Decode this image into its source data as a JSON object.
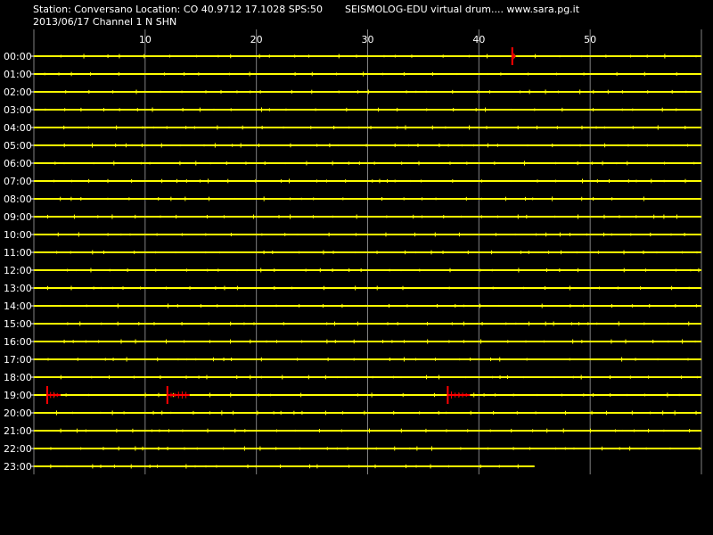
{
  "header": {
    "station_line": "Station: Conversano Location: CO 40.9712 17.1028 SPS:50",
    "brand": "SEISMOLOG-EDU virtual drum.... www.sara.pg.it",
    "date_line": "2013/06/17  Channel 1 N SHN"
  },
  "drum": {
    "minute_ticks": [
      "10",
      "20",
      "30",
      "40",
      "50"
    ],
    "hours": [
      "00:00",
      "01:00",
      "02:00",
      "03:00",
      "04:00",
      "05:00",
      "06:00",
      "07:00",
      "08:00",
      "09:00",
      "10:00",
      "11:00",
      "12:00",
      "13:00",
      "14:00",
      "15:00",
      "16:00",
      "17:00",
      "18:00",
      "19:00",
      "20:00",
      "21:00",
      "22:00",
      "23:00"
    ],
    "last_row_end_minute": 45,
    "events": [
      {
        "hour": "00:00",
        "minute": 43.0,
        "width_min": 0.3
      },
      {
        "hour": "19:00",
        "minute": 1.2,
        "width_min": 1.2
      },
      {
        "hour": "19:00",
        "minute": 12.0,
        "width_min": 2.0
      },
      {
        "hour": "19:00",
        "minute": 37.2,
        "width_min": 2.0
      }
    ],
    "colors": {
      "background": "#000000",
      "trace": "#ffff00",
      "event": "#ff0000",
      "grid": "#808080",
      "text": "#ffffff"
    }
  }
}
